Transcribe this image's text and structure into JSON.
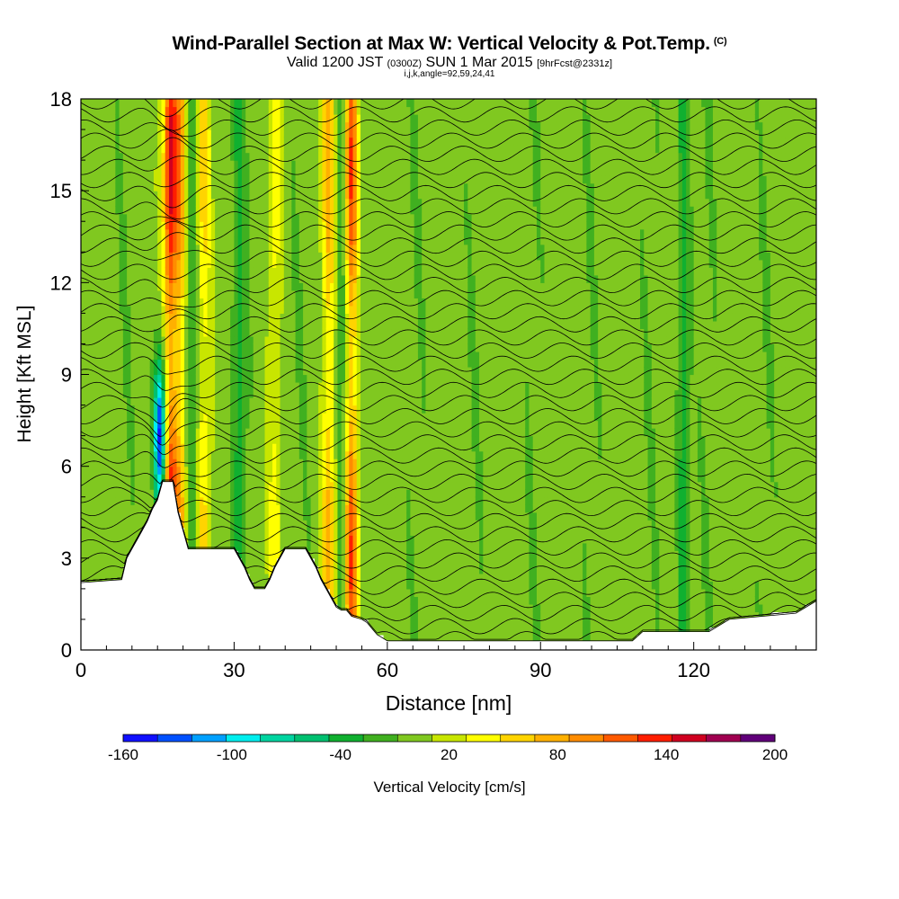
{
  "title": {
    "main": "Wind-Parallel Section at Max W: Vertical Velocity & Pot.Temp.",
    "copyright": "(C)",
    "valid_prefix": "Valid 1200 JST",
    "valid_utc": "(0300Z)",
    "valid_date": "SUN 1 Mar 2015",
    "forecast": "[9hrFcst@2331z]",
    "section_params": "i,j,k,angle=92,59,24,41"
  },
  "chart_data": {
    "type": "heatmap",
    "xlabel": "Distance [nm]",
    "ylabel": "Height [Kft MSL]",
    "xlim": [
      0,
      144
    ],
    "ylim": [
      0,
      18
    ],
    "xticks": [
      "0",
      "30",
      "60",
      "90",
      "120"
    ],
    "xtick_values": [
      0,
      30,
      60,
      90,
      120
    ],
    "yticks": [
      "0",
      "3",
      "6",
      "9",
      "12",
      "15",
      "18"
    ],
    "ytick_values": [
      0,
      3,
      6,
      9,
      12,
      15,
      18
    ],
    "colorbar": {
      "label": "Vertical Velocity [cm/s]",
      "range": [
        -160,
        200
      ],
      "step": 20,
      "tick_labels": [
        "-160",
        "-100",
        "-40",
        "20",
        "80",
        "140",
        "200"
      ],
      "tick_values": [
        -160,
        -100,
        -40,
        20,
        80,
        140,
        200
      ],
      "colors": [
        "#1010ff",
        "#0050ff",
        "#00a0ff",
        "#00eeee",
        "#00d4a0",
        "#00c070",
        "#10b030",
        "#40b020",
        "#80c820",
        "#c8e600",
        "#ffff00",
        "#ffd400",
        "#ffb000",
        "#ff8c00",
        "#ff5a00",
        "#ff1e00",
        "#d00020",
        "#a00050",
        "#60007a"
      ]
    },
    "terrain_profile": {
      "x_nm": [
        0,
        8,
        9,
        10,
        11,
        12,
        13,
        14,
        15,
        16,
        18,
        19,
        20,
        21,
        30,
        31,
        32,
        33,
        34,
        36,
        37,
        38,
        39,
        40,
        41,
        44,
        45,
        46,
        47,
        48,
        49,
        50,
        51,
        52,
        53,
        55,
        56,
        57,
        58,
        59,
        60,
        61,
        63,
        67,
        71,
        75,
        80,
        86,
        95,
        100,
        105,
        108,
        110,
        113,
        123,
        127,
        140,
        144
      ],
      "height_kft": [
        2.2,
        2.3,
        3.0,
        3.3,
        3.6,
        3.9,
        4.2,
        4.6,
        4.9,
        5.5,
        5.5,
        4.5,
        3.9,
        3.3,
        3.3,
        3.0,
        2.7,
        2.3,
        2.0,
        2.0,
        2.3,
        2.7,
        3.0,
        3.3,
        3.3,
        3.3,
        3.0,
        2.7,
        2.3,
        2.0,
        1.7,
        1.4,
        1.3,
        1.3,
        1.1,
        1.0,
        0.9,
        0.7,
        0.5,
        0.4,
        0.3,
        0.3,
        0.3,
        0.3,
        0.3,
        0.3,
        0.3,
        0.3,
        0.3,
        0.3,
        0.3,
        0.3,
        0.6,
        0.6,
        0.6,
        1.0,
        1.2,
        1.6
      ]
    },
    "updraft_bands": [
      {
        "x_nm": 17.5,
        "w_max_cm_s": 160
      },
      {
        "x_nm": 19.5,
        "w_max_cm_s": 100
      },
      {
        "x_nm": 24,
        "w_max_cm_s": 60
      },
      {
        "x_nm": 53,
        "w_max_cm_s": 140
      },
      {
        "x_nm": 48.5,
        "w_max_cm_s": 80
      },
      {
        "x_nm": 38,
        "w_max_cm_s": 40
      }
    ],
    "downdraft_bands": [
      {
        "x_nm": 15.5,
        "w_min_cm_s": -160
      },
      {
        "x_nm": 21.5,
        "w_min_cm_s": -40
      },
      {
        "x_nm": 31,
        "w_min_cm_s": -40
      },
      {
        "x_nm": 51,
        "w_min_cm_s": -40
      },
      {
        "x_nm": 118,
        "w_min_cm_s": -60
      }
    ],
    "potential_temperature_contours": {
      "interval": 1,
      "count": 45
    }
  }
}
